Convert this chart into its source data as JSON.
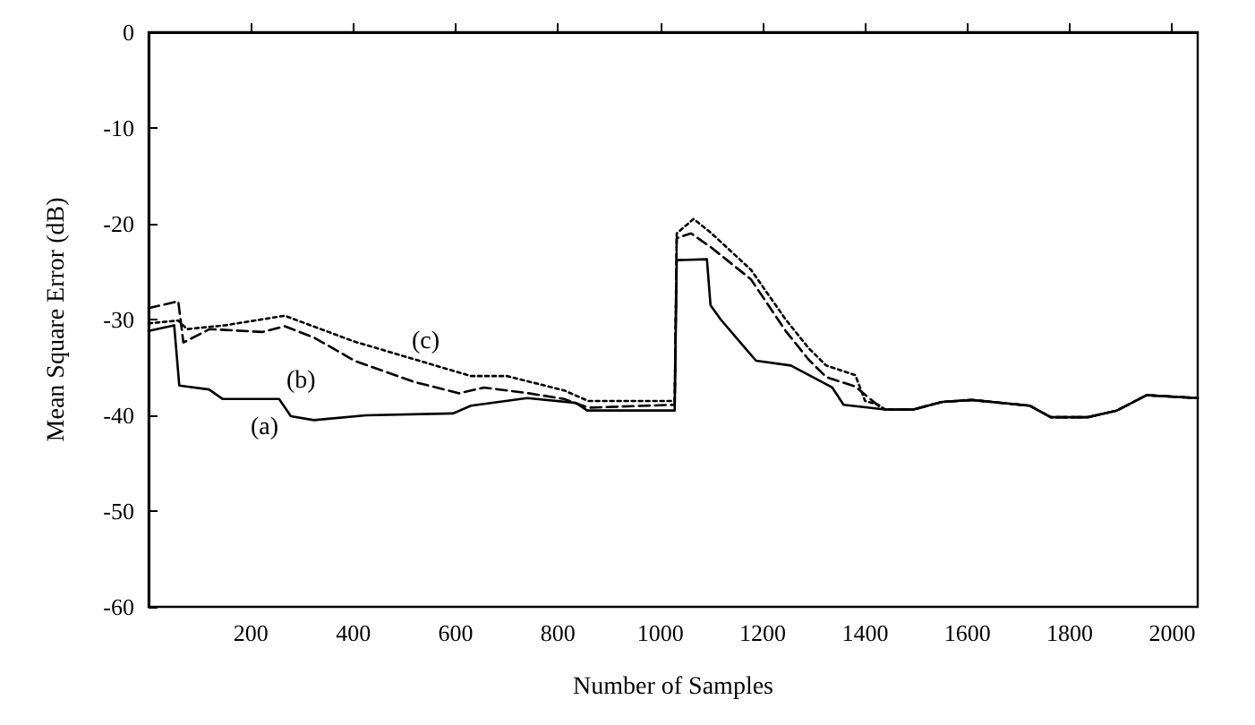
{
  "chart_data": {
    "type": "line",
    "xlabel": "Number of Samples",
    "ylabel": "Mean Square Error (dB)",
    "xlim": [
      0,
      2050
    ],
    "ylim": [
      -60,
      0
    ],
    "xticks": [
      200,
      400,
      600,
      800,
      1000,
      1200,
      1400,
      1600,
      1800,
      2000
    ],
    "yticks": [
      -60,
      -50,
      -40,
      -30,
      -20,
      -10,
      0
    ],
    "marker": "none",
    "series": [
      {
        "color": "#000000",
        "line_style": "solid",
        "x": [
          0,
          50,
          60,
          118,
          145,
          255,
          278,
          323,
          425,
          595,
          630,
          740,
          835,
          857,
          1028,
          1032,
          1091,
          1098,
          1118,
          1166,
          1187,
          1255,
          1336,
          1358,
          1439,
          1494,
          1551,
          1609,
          1722,
          1763,
          1835,
          1892,
          1950,
          2050
        ],
        "values": [
          -31.2,
          -30.6,
          -36.9,
          -37.3,
          -38.3,
          -38.3,
          -40.1,
          -40.5,
          -40,
          -39.8,
          -39,
          -38.2,
          -38.7,
          -39.5,
          -39.5,
          -23.8,
          -23.7,
          -28.5,
          -30,
          -33,
          -34.3,
          -34.8,
          -37.1,
          -38.9,
          -39.4,
          -39.4,
          -38.6,
          -38.4,
          -39,
          -40.2,
          -40.2,
          -39.5,
          -37.9,
          -38.2
        ]
      },
      {
        "color": "#000000",
        "line_style": "dashed",
        "x": [
          0,
          58,
          68,
          119,
          222,
          266,
          324,
          402,
          518,
          607,
          655,
          743,
          812,
          859,
          1028,
          1032,
          1060,
          1100,
          1177,
          1245,
          1290,
          1324,
          1381,
          1426,
          1439,
          1494,
          1551,
          1609,
          1722,
          1763,
          1835,
          1892,
          1950,
          2050
        ],
        "values": [
          -28.8,
          -28.1,
          -32.4,
          -31,
          -31.3,
          -30.7,
          -31.9,
          -34.3,
          -36.5,
          -37.7,
          -37.1,
          -37.7,
          -38.3,
          -39.2,
          -38.9,
          -21.5,
          -21,
          -22.5,
          -25.8,
          -31.2,
          -34.2,
          -36,
          -37,
          -39,
          -39.4,
          -39.4,
          -38.6,
          -38.4,
          -39,
          -40.2,
          -40.2,
          -39.5,
          -37.9,
          -38.2
        ]
      },
      {
        "color": "#000000",
        "line_style": "dotted",
        "x": [
          0,
          58,
          75,
          150,
          266,
          402,
          573,
          630,
          700,
          812,
          859,
          1028,
          1032,
          1065,
          1100,
          1177,
          1245,
          1290,
          1324,
          1381,
          1400,
          1426,
          1439,
          1494,
          1551,
          1609,
          1722,
          1763,
          1835,
          1892,
          1950,
          2050
        ],
        "values": [
          -30.4,
          -30.1,
          -31,
          -30.6,
          -29.6,
          -32.3,
          -35,
          -35.9,
          -35.9,
          -37.4,
          -38.5,
          -38.5,
          -21,
          -19.5,
          -21,
          -24.8,
          -30,
          -33,
          -34.8,
          -35.8,
          -38.5,
          -38.9,
          -39.4,
          -39.4,
          -38.6,
          -38.4,
          -39,
          -40.2,
          -40.2,
          -39.5,
          -37.9,
          -38.2
        ]
      }
    ],
    "annotations": [
      "(a)",
      "(b)",
      "(c)"
    ]
  }
}
